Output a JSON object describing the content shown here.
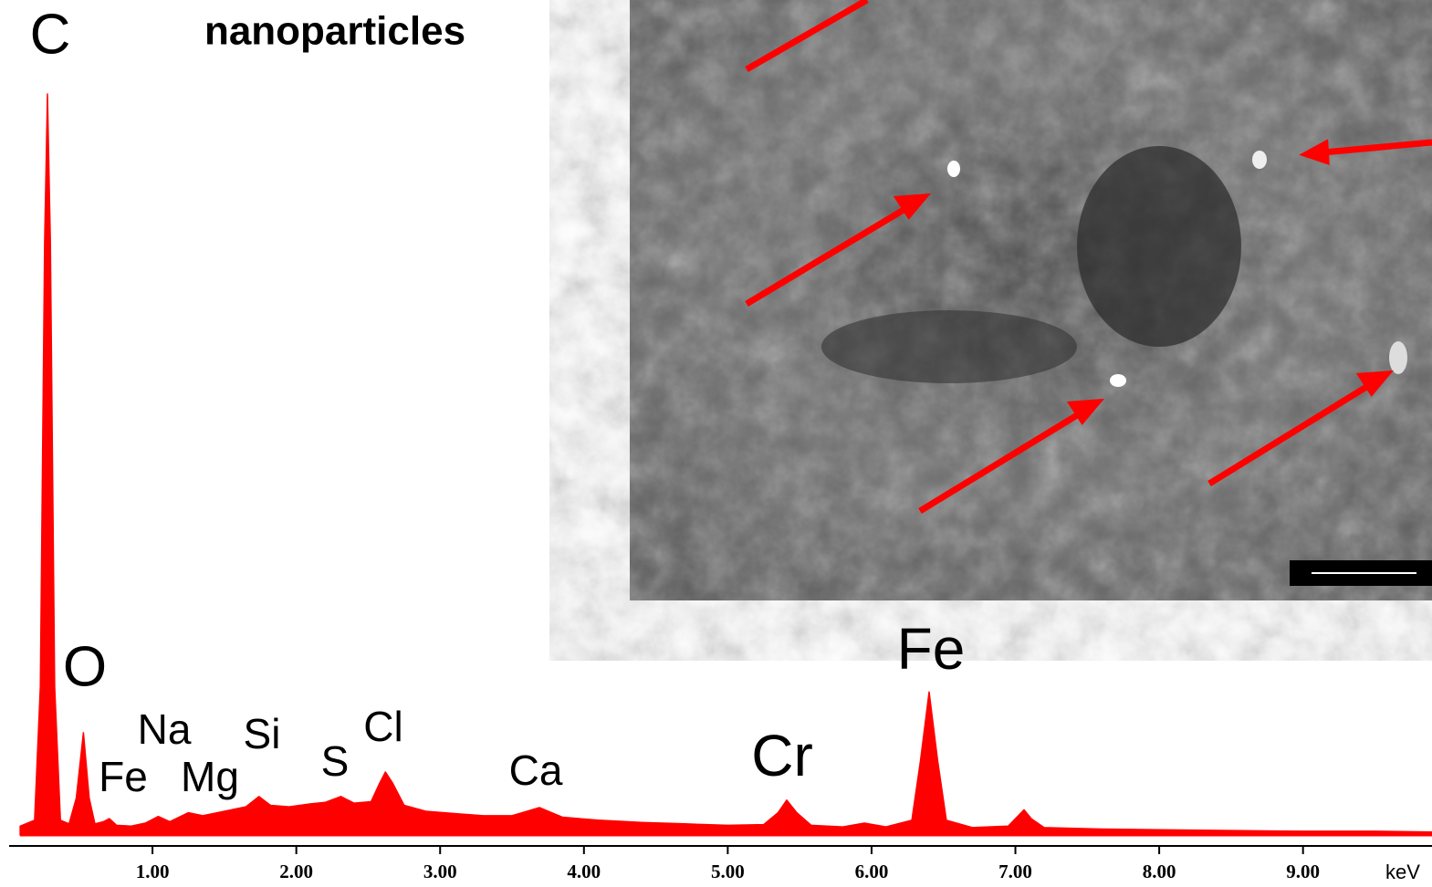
{
  "chart_data": {
    "type": "area",
    "title": "nanoparticles",
    "x_label": "keV",
    "annotations": [
      "C",
      "O",
      "Fe",
      "Na",
      "Mg",
      "Si",
      "S",
      "Cl",
      "Ca",
      "Cr",
      "Fe"
    ],
    "x": [
      0.08,
      0.18,
      0.22,
      0.25,
      0.27,
      0.29,
      0.32,
      0.36,
      0.42,
      0.47,
      0.52,
      0.56,
      0.6,
      0.66,
      0.7,
      0.75,
      0.85,
      0.95,
      1.04,
      1.12,
      1.25,
      1.35,
      1.5,
      1.65,
      1.74,
      1.82,
      1.95,
      2.1,
      2.2,
      2.31,
      2.4,
      2.52,
      2.58,
      2.62,
      2.67,
      2.75,
      2.9,
      3.1,
      3.3,
      3.5,
      3.69,
      3.85,
      4.1,
      4.4,
      4.7,
      5.0,
      5.25,
      5.35,
      5.41,
      5.48,
      5.58,
      5.8,
      5.95,
      6.1,
      6.28,
      6.34,
      6.4,
      6.46,
      6.52,
      6.7,
      6.95,
      7.03,
      7.06,
      7.11,
      7.2,
      7.6,
      8.0,
      8.5,
      9.0,
      9.5,
      9.9
    ],
    "values": [
      1.2,
      2,
      20,
      80,
      100,
      80,
      20,
      2,
      1.5,
      5,
      13.8,
      5,
      1.5,
      1.8,
      2.2,
      1.3,
      1.2,
      1.6,
      2.5,
      1.8,
      3,
      2.6,
      3.2,
      3.8,
      5.2,
      4,
      3.8,
      4.2,
      4.4,
      5.2,
      4.3,
      4.5,
      7,
      8.5,
      7,
      4,
      3.2,
      2.9,
      2.6,
      2.6,
      3.7,
      2.4,
      2,
      1.7,
      1.5,
      1.3,
      1.4,
      3,
      4.7,
      3,
      1.3,
      1.1,
      1.6,
      1.1,
      2,
      10,
      19.3,
      10,
      2,
      1,
      1.2,
      2.8,
      3.4,
      2.2,
      1,
      0.8,
      0.7,
      0.6,
      0.5,
      0.5,
      0.4
    ],
    "color": "#ff0000",
    "xlim": [
      0,
      9.9
    ],
    "ylim": [
      0,
      100
    ],
    "xticks": [
      {
        "value": 1,
        "label": "1.00"
      },
      {
        "value": 2,
        "label": "2.00"
      },
      {
        "value": 3,
        "label": "3.00"
      },
      {
        "value": 4,
        "label": "4.00"
      },
      {
        "value": 5,
        "label": "5.00"
      },
      {
        "value": 6,
        "label": "6.00"
      },
      {
        "value": 7,
        "label": "7.00"
      },
      {
        "value": 8,
        "label": "8.00"
      },
      {
        "value": 9,
        "label": "9.00"
      }
    ]
  }
}
